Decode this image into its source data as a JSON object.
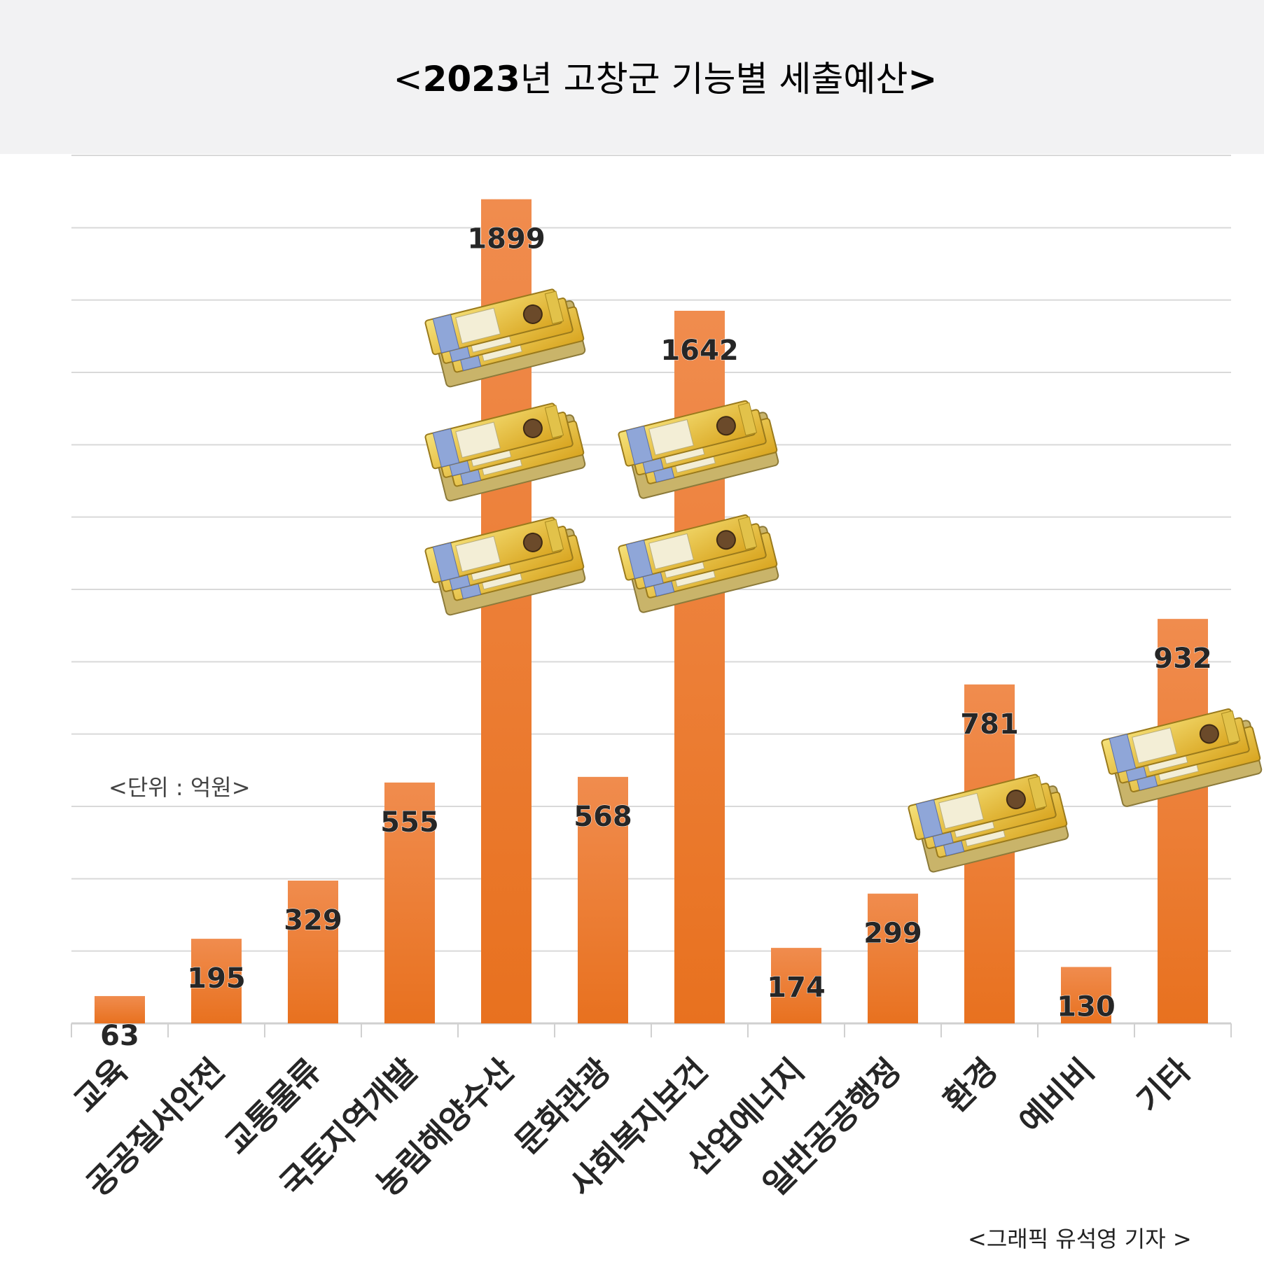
{
  "title": {
    "open": "<",
    "year": "2023",
    "text": "년 고창군 기능별 세출예산",
    "close": ">"
  },
  "unit_note": "<단위 : 억원>",
  "credit": "<그래픽 유석영 기자 >",
  "colors": {
    "bar_top": "#f08c4e",
    "bar_bottom": "#e8711f",
    "grid": "#d9d9d9",
    "axis": "#d0d0d0",
    "value_label": "#262626",
    "category_label": "#262626",
    "title_band": "#f2f2f3"
  },
  "decorations": {
    "icon": "korean-won-banknote-stack-icon",
    "counts_per_category": [
      0,
      0,
      0,
      0,
      3,
      0,
      2,
      0,
      0,
      1,
      0,
      1
    ]
  },
  "chart_data": {
    "type": "bar",
    "title": "<2023년 고창군 기능별 세출예산>",
    "xlabel": "",
    "ylabel": "",
    "unit": "억원",
    "categories": [
      "교육",
      "공공질서안전",
      "교통물류",
      "국토지역개발",
      "농림해양수산",
      "문화관광",
      "사회복지보건",
      "산업에너지",
      "일반공공행정",
      "환경",
      "예비비",
      "기타"
    ],
    "values": [
      63,
      195,
      329,
      555,
      1899,
      568,
      1642,
      174,
      299,
      781,
      130,
      932
    ],
    "ylim": [
      0,
      2000
    ],
    "grid": true,
    "legend": "none",
    "data_labels": true
  }
}
